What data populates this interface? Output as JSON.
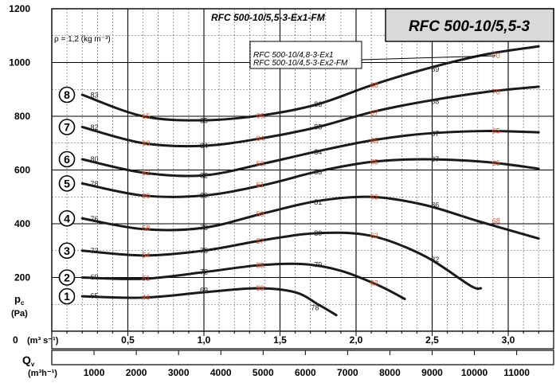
{
  "chart_data": {
    "type": "line",
    "title": "RFC 500-10/5,5-3",
    "subtitle": "RFC 500-10/5,5-3-Ex1-FM",
    "density_note": "ρ = 1,2 (kg m⁻³)",
    "legend_lines": [
      "RFC 500-10/4,8-3-Ex1",
      "RFC 500-10/4,5-3-Ex2-FM"
    ],
    "ylabel_main": "p",
    "ylabel_sub": "c",
    "ylabel_unit": "(Pa)",
    "ylim": [
      0,
      1200
    ],
    "y_ticks": [
      "1200",
      "1000",
      "800",
      "600",
      "400",
      "200"
    ],
    "y_tick_values": [
      1200,
      1000,
      800,
      600,
      400,
      200
    ],
    "origin_label": "0",
    "x_unit_label": "(m³ s⁻¹)",
    "xlim": [
      0,
      3.25
    ],
    "x_ticks": [
      "0,5",
      "1,0",
      "1,5",
      "2,0",
      "2,5",
      "3,0"
    ],
    "x_tick_values": [
      0.5,
      1.0,
      1.5,
      2.0,
      2.5,
      3.0
    ],
    "x2_label_main": "Q",
    "x2_label_sub": "v",
    "x2_unit": "(m³h⁻¹)",
    "x2_ticks": [
      "1000",
      "2000",
      "3000",
      "4000",
      "5000",
      "6000",
      "7000",
      "8000",
      "9000",
      "10000",
      "11000"
    ],
    "x2_tick_values": [
      1000,
      2000,
      3000,
      4000,
      5000,
      6000,
      7000,
      8000,
      9000,
      10000,
      11000
    ],
    "series": [
      {
        "name": "1",
        "marker_y": 130,
        "points": [
          [
            0.2,
            130
          ],
          [
            0.6,
            125
          ],
          [
            1.0,
            145
          ],
          [
            1.35,
            160
          ],
          [
            1.6,
            145
          ],
          [
            1.75,
            100
          ],
          [
            1.87,
            60
          ]
        ],
        "labels": [
          {
            "t": "65",
            "x": 0.28,
            "y": 132,
            "c": "black"
          },
          {
            "t": "46",
            "x": 0.62,
            "y": 126,
            "c": "red"
          },
          {
            "t": "69",
            "x": 1.0,
            "y": 152,
            "c": "black"
          },
          {
            "t": "59",
            "x": 1.37,
            "y": 160,
            "c": "red"
          },
          {
            "t": "78",
            "x": 1.73,
            "y": 88,
            "c": "black"
          }
        ]
      },
      {
        "name": "2",
        "marker_y": 200,
        "points": [
          [
            0.2,
            200
          ],
          [
            0.6,
            195
          ],
          [
            1.0,
            220
          ],
          [
            1.35,
            245
          ],
          [
            1.65,
            250
          ],
          [
            1.9,
            225
          ],
          [
            2.15,
            170
          ],
          [
            2.32,
            120
          ]
        ],
        "labels": [
          {
            "t": "69",
            "x": 0.28,
            "y": 202,
            "c": "black"
          },
          {
            "t": "51",
            "x": 0.62,
            "y": 197,
            "c": "red"
          },
          {
            "t": "72",
            "x": 1.0,
            "y": 221,
            "c": "black"
          },
          {
            "t": "55",
            "x": 1.37,
            "y": 245,
            "c": "red"
          },
          {
            "t": "79",
            "x": 1.75,
            "y": 248,
            "c": "black"
          },
          {
            "t": "62",
            "x": 2.12,
            "y": 180,
            "c": "red"
          }
        ]
      },
      {
        "name": "3",
        "marker_y": 300,
        "points": [
          [
            0.2,
            300
          ],
          [
            0.6,
            282
          ],
          [
            1.0,
            300
          ],
          [
            1.4,
            340
          ],
          [
            1.75,
            365
          ],
          [
            2.1,
            355
          ],
          [
            2.45,
            280
          ],
          [
            2.75,
            170
          ],
          [
            2.82,
            160
          ]
        ],
        "labels": [
          {
            "t": "73",
            "x": 0.28,
            "y": 300,
            "c": "black"
          },
          {
            "t": "54",
            "x": 0.62,
            "y": 283,
            "c": "red"
          },
          {
            "t": "75",
            "x": 1.0,
            "y": 300,
            "c": "black"
          },
          {
            "t": "57",
            "x": 1.37,
            "y": 335,
            "c": "red"
          },
          {
            "t": "80",
            "x": 1.75,
            "y": 364,
            "c": "black"
          },
          {
            "t": "62",
            "x": 2.12,
            "y": 355,
            "c": "red"
          },
          {
            "t": "82",
            "x": 2.52,
            "y": 266,
            "c": "black"
          }
        ]
      },
      {
        "name": "4",
        "marker_y": 420,
        "points": [
          [
            0.2,
            420
          ],
          [
            0.6,
            380
          ],
          [
            1.0,
            385
          ],
          [
            1.4,
            440
          ],
          [
            1.75,
            485
          ],
          [
            2.1,
            500
          ],
          [
            2.45,
            470
          ],
          [
            2.8,
            410
          ],
          [
            3.2,
            345
          ]
        ],
        "labels": [
          {
            "t": "76",
            "x": 0.28,
            "y": 418,
            "c": "black"
          },
          {
            "t": "58",
            "x": 0.62,
            "y": 383,
            "c": "red"
          },
          {
            "t": "78",
            "x": 1.0,
            "y": 385,
            "c": "black"
          },
          {
            "t": "59",
            "x": 1.37,
            "y": 435,
            "c": "red"
          },
          {
            "t": "81",
            "x": 1.75,
            "y": 480,
            "c": "black"
          },
          {
            "t": "63",
            "x": 2.12,
            "y": 500,
            "c": "red"
          },
          {
            "t": "86",
            "x": 2.52,
            "y": 470,
            "c": "black"
          },
          {
            "t": "68",
            "x": 2.92,
            "y": 410,
            "c": "red"
          }
        ]
      },
      {
        "name": "5",
        "marker_y": 550,
        "points": [
          [
            0.2,
            550
          ],
          [
            0.6,
            505
          ],
          [
            1.0,
            505
          ],
          [
            1.4,
            545
          ],
          [
            1.75,
            595
          ],
          [
            2.1,
            630
          ],
          [
            2.45,
            640
          ],
          [
            2.85,
            630
          ],
          [
            3.2,
            605
          ]
        ],
        "labels": [
          {
            "t": "78",
            "x": 0.28,
            "y": 548,
            "c": "black"
          },
          {
            "t": "60",
            "x": 0.62,
            "y": 504,
            "c": "red"
          },
          {
            "t": "80",
            "x": 1.0,
            "y": 505,
            "c": "black"
          },
          {
            "t": "61",
            "x": 1.37,
            "y": 545,
            "c": "red"
          },
          {
            "t": "83",
            "x": 1.75,
            "y": 592,
            "c": "black"
          },
          {
            "t": "65",
            "x": 2.12,
            "y": 630,
            "c": "red"
          },
          {
            "t": "87",
            "x": 2.52,
            "y": 640,
            "c": "black"
          },
          {
            "t": "65",
            "x": 2.92,
            "y": 625,
            "c": "red"
          }
        ]
      },
      {
        "name": "6",
        "marker_y": 640,
        "points": [
          [
            0.2,
            640
          ],
          [
            0.6,
            590
          ],
          [
            1.0,
            580
          ],
          [
            1.4,
            625
          ],
          [
            1.75,
            670
          ],
          [
            2.1,
            710
          ],
          [
            2.45,
            735
          ],
          [
            2.85,
            745
          ],
          [
            3.2,
            740
          ]
        ],
        "labels": [
          {
            "t": "80",
            "x": 0.28,
            "y": 640,
            "c": "black"
          },
          {
            "t": "62",
            "x": 0.62,
            "y": 590,
            "c": "red"
          },
          {
            "t": "82",
            "x": 1.0,
            "y": 580,
            "c": "black"
          },
          {
            "t": "63",
            "x": 1.37,
            "y": 623,
            "c": "red"
          },
          {
            "t": "84",
            "x": 1.75,
            "y": 667,
            "c": "black"
          },
          {
            "t": "65",
            "x": 2.12,
            "y": 710,
            "c": "red"
          },
          {
            "t": "87",
            "x": 2.52,
            "y": 735,
            "c": "black"
          },
          {
            "t": "65",
            "x": 2.92,
            "y": 745,
            "c": "red"
          }
        ]
      },
      {
        "name": "7",
        "marker_y": 760,
        "points": [
          [
            0.2,
            760
          ],
          [
            0.6,
            700
          ],
          [
            1.0,
            690
          ],
          [
            1.4,
            720
          ],
          [
            1.75,
            760
          ],
          [
            2.1,
            815
          ],
          [
            2.45,
            855
          ],
          [
            2.85,
            890
          ],
          [
            3.2,
            910
          ]
        ],
        "labels": [
          {
            "t": "82",
            "x": 0.28,
            "y": 758,
            "c": "black"
          },
          {
            "t": "63",
            "x": 0.62,
            "y": 700,
            "c": "red"
          },
          {
            "t": "84",
            "x": 1.0,
            "y": 690,
            "c": "black"
          },
          {
            "t": "64",
            "x": 1.37,
            "y": 717,
            "c": "red"
          },
          {
            "t": "85",
            "x": 1.75,
            "y": 760,
            "c": "black"
          },
          {
            "t": "67",
            "x": 2.12,
            "y": 812,
            "c": "red"
          },
          {
            "t": "88",
            "x": 2.52,
            "y": 855,
            "c": "black"
          },
          {
            "t": "70",
            "x": 2.92,
            "y": 890,
            "c": "red"
          }
        ]
      },
      {
        "name": "8",
        "marker_y": 880,
        "points": [
          [
            0.2,
            880
          ],
          [
            0.6,
            800
          ],
          [
            1.0,
            785
          ],
          [
            1.4,
            805
          ],
          [
            1.75,
            845
          ],
          [
            2.1,
            915
          ],
          [
            2.45,
            975
          ],
          [
            2.85,
            1030
          ],
          [
            3.2,
            1060
          ]
        ],
        "labels": [
          {
            "t": "83",
            "x": 0.28,
            "y": 878,
            "c": "black"
          },
          {
            "t": "65",
            "x": 0.62,
            "y": 800,
            "c": "red"
          },
          {
            "t": "85",
            "x": 1.0,
            "y": 783,
            "c": "black"
          },
          {
            "t": "66",
            "x": 1.37,
            "y": 802,
            "c": "red"
          },
          {
            "t": "86",
            "x": 1.75,
            "y": 845,
            "c": "black"
          },
          {
            "t": "68",
            "x": 2.12,
            "y": 915,
            "c": "red"
          },
          {
            "t": "89",
            "x": 2.52,
            "y": 975,
            "c": "black"
          },
          {
            "t": "70",
            "x": 2.92,
            "y": 1025,
            "c": "red"
          }
        ]
      }
    ],
    "grid": true,
    "colors": {
      "curve": "#1a1a1a",
      "red_label": "#e0532e",
      "title_bg": "#d9d9d9"
    }
  }
}
